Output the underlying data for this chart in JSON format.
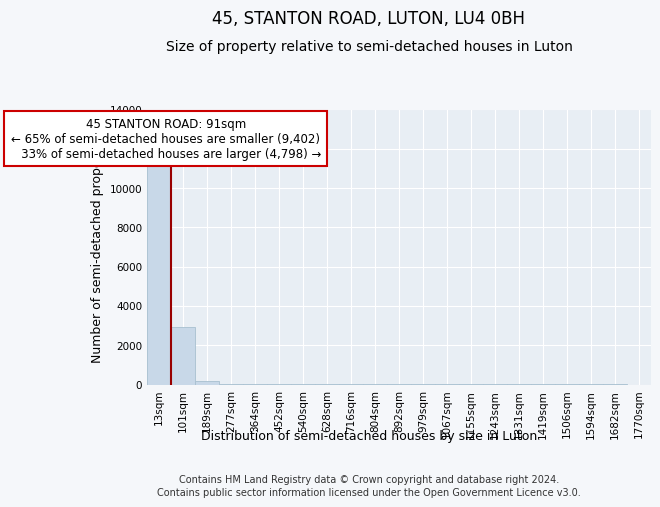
{
  "title": "45, STANTON ROAD, LUTON, LU4 0BH",
  "subtitle": "Size of property relative to semi-detached houses in Luton",
  "xlabel": "Distribution of semi-detached houses by size in Luton",
  "ylabel": "Number of semi-detached properties",
  "bin_labels": [
    "13sqm",
    "101sqm",
    "189sqm",
    "277sqm",
    "364sqm",
    "452sqm",
    "540sqm",
    "628sqm",
    "716sqm",
    "804sqm",
    "892sqm",
    "979sqm",
    "1067sqm",
    "1155sqm",
    "1243sqm",
    "1331sqm",
    "1419sqm",
    "1506sqm",
    "1594sqm",
    "1682sqm",
    "1770sqm"
  ],
  "bin_values": [
    11500,
    2950,
    200,
    50,
    20,
    10,
    8,
    5,
    4,
    3,
    3,
    2,
    2,
    2,
    1,
    1,
    1,
    1,
    1,
    1,
    0
  ],
  "bar_color": "#c8d8e8",
  "bar_edgecolor": "#a8c0d0",
  "property_line_color": "#990000",
  "annotation_text": "45 STANTON ROAD: 91sqm\n← 65% of semi-detached houses are smaller (9,402)\n   33% of semi-detached houses are larger (4,798) →",
  "annotation_box_color": "white",
  "annotation_box_edgecolor": "#cc0000",
  "ylim": [
    0,
    14000
  ],
  "yticks": [
    0,
    2000,
    4000,
    6000,
    8000,
    10000,
    12000,
    14000
  ],
  "footer_line1": "Contains HM Land Registry data © Crown copyright and database right 2024.",
  "footer_line2": "Contains public sector information licensed under the Open Government Licence v3.0.",
  "bg_color": "#f5f7fa",
  "plot_bg_color": "#e8eef4",
  "grid_color": "white",
  "title_fontsize": 12,
  "subtitle_fontsize": 10,
  "axis_label_fontsize": 9,
  "tick_fontsize": 7.5,
  "footer_fontsize": 7,
  "annotation_fontsize": 8.5
}
